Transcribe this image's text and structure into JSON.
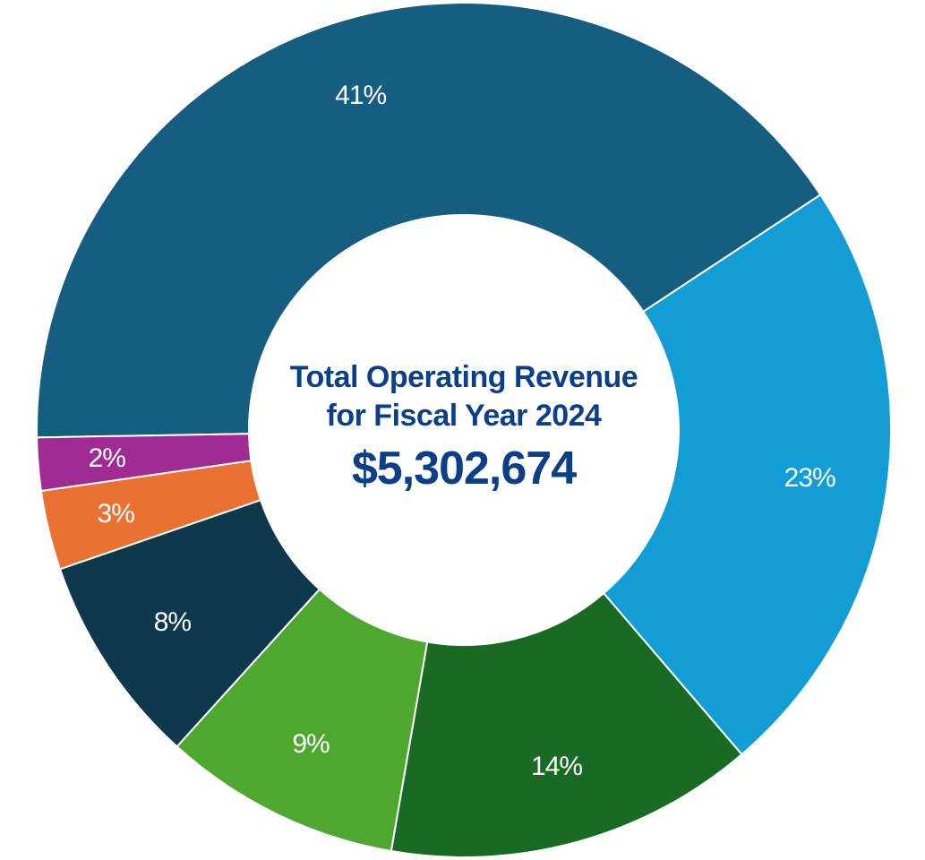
{
  "chart_data": {
    "type": "pie",
    "variant": "donut",
    "title": "Total Operating Revenue for Fiscal Year 2024",
    "total": "$5,302,674",
    "legend": "none",
    "slices": [
      {
        "value": 41,
        "label": "41%",
        "color": "#165e80"
      },
      {
        "value": 23,
        "label": "23%",
        "color": "#129dd5"
      },
      {
        "value": 14,
        "label": "14%",
        "color": "#196b24"
      },
      {
        "value": 9,
        "label": "9%",
        "color": "#4ea72e"
      },
      {
        "value": 8,
        "label": "8%",
        "color": "#0e384c"
      },
      {
        "value": 3,
        "label": "3%",
        "color": "#e97132"
      },
      {
        "value": 2,
        "label": "2%",
        "color": "#a02b93"
      }
    ]
  },
  "center": {
    "title_line1": "Total Operating Revenue",
    "title_line2": "for Fiscal Year 2024",
    "total": "$5,302,674",
    "text_color": "#0b3f87"
  }
}
